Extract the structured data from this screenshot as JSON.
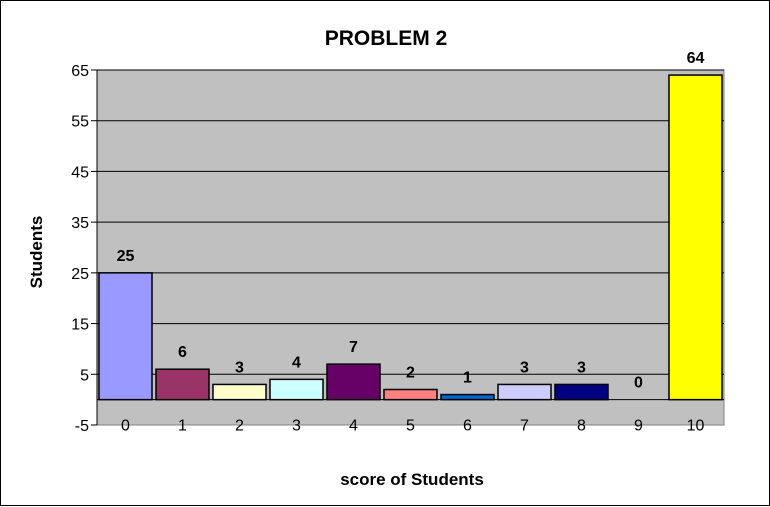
{
  "chart_data": {
    "type": "bar",
    "title": "PROBLEM 2",
    "xlabel": "score of Students",
    "ylabel": "Students",
    "categories": [
      "0",
      "1",
      "2",
      "3",
      "4",
      "5",
      "6",
      "7",
      "8",
      "9",
      "10"
    ],
    "values": [
      25,
      6,
      3,
      4,
      7,
      2,
      1,
      3,
      3,
      0,
      64
    ],
    "data_labels": [
      "25",
      "6",
      "3",
      "4",
      "7",
      "2",
      "1",
      "3",
      "3",
      "0",
      "64"
    ],
    "bar_colors": [
      "#9999ff",
      "#993366",
      "#ffffcc",
      "#ccffff",
      "#660066",
      "#ff8080",
      "#0066cc",
      "#ccccff",
      "#000080",
      "#ff00ff",
      "#ffff00"
    ],
    "ylim": [
      -5,
      65
    ],
    "yticks": [
      -5,
      5,
      15,
      25,
      35,
      45,
      55,
      65
    ],
    "ytick_labels": [
      "-5",
      "5",
      "15",
      "25",
      "35",
      "45",
      "55",
      "65"
    ],
    "grid": true,
    "legend": "none",
    "plot_background": "#c0c0c0"
  }
}
